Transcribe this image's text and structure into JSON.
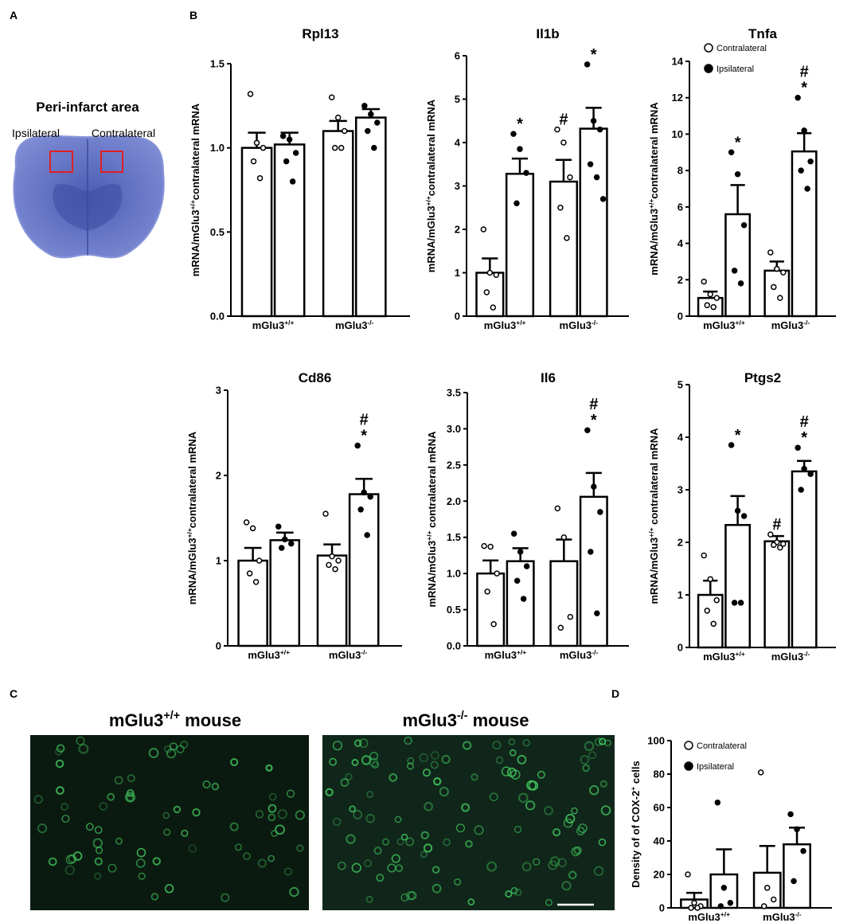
{
  "panel_labels": [
    "A",
    "B",
    "C",
    "D"
  ],
  "panel_a": {
    "title": "Peri-infarct area",
    "left": "Ipsilateral",
    "right": "Contralateral"
  },
  "panel_c": {
    "titles": [
      {
        "text": "mGlu3",
        "sup": "+/+",
        "rest": " mouse"
      },
      {
        "text": "mGlu3",
        "sup": "-/-",
        "rest": " mouse"
      }
    ]
  },
  "chart_data": [
    {
      "type": "bar",
      "title": "Rpl13",
      "y_label": {
        "text": "mRNA/mGlu3",
        "sup": "+/+",
        "rest": "contralateral mRNA"
      },
      "categories": [
        {
          "text": "mGlu3",
          "sup": "+/+"
        },
        {
          "text": "mGlu3",
          "sup": "-/-"
        }
      ],
      "ylim": [
        0,
        1.5
      ],
      "yticks": [
        {
          "value": 0,
          "label": "0.0"
        },
        0.5,
        {
          "value": 1,
          "label": "1.0"
        },
        1.5
      ],
      "series": [
        {
          "color": "#ffffff",
          "values": [
            1.0,
            1.1
          ],
          "errors": [
            0.09,
            0.06
          ],
          "points": [
            [
              1.32,
              1.03,
              1.0,
              0.92,
              0.82
            ],
            [
              1.3,
              1.18,
              1.1,
              1.0,
              1.0
            ]
          ],
          "annotations": [
            [],
            []
          ]
        },
        {
          "color": "#000000",
          "values": [
            1.02,
            1.18
          ],
          "errors": [
            0.07,
            0.05
          ],
          "points": [
            [
              1.07,
              1.05,
              0.97,
              0.92,
              0.8
            ],
            [
              1.25,
              1.2,
              1.15,
              1.1,
              1.0
            ]
          ],
          "annotations": [
            [],
            []
          ]
        }
      ]
    },
    {
      "type": "bar",
      "title": "Il1b",
      "y_label": {
        "text": "mRNA/mGlu3",
        "sup": "+/+",
        "rest": "contralateral mRNA"
      },
      "categories": [
        {
          "text": "mGlu3",
          "sup": "+/+"
        },
        {
          "text": "mGlu3",
          "sup": "-/-"
        }
      ],
      "ylim": [
        0,
        6
      ],
      "yticks": [
        0,
        1,
        2,
        3,
        4,
        5,
        6
      ],
      "series": [
        {
          "color": "#ffffff",
          "values": [
            1.0,
            3.1
          ],
          "errors": [
            0.33,
            0.5
          ],
          "points": [
            [
              2.0,
              1.0,
              0.95,
              0.55,
              0.2
            ],
            [
              4.3,
              4.0,
              3.2,
              2.5,
              1.8
            ]
          ],
          "annotations": [
            [],
            [
              "#"
            ]
          ]
        },
        {
          "color": "#000000",
          "values": [
            3.28,
            4.32
          ],
          "errors": [
            0.35,
            0.48
          ],
          "points": [
            [
              4.2,
              3.85,
              3.3,
              2.6
            ],
            [
              5.8,
              4.5,
              4.3,
              3.5,
              3.2,
              2.7
            ]
          ],
          "annotations": [
            [
              "*"
            ],
            [
              "*"
            ]
          ]
        }
      ]
    },
    {
      "type": "bar",
      "title": "Tnfa",
      "legend": true,
      "y_label": {
        "text": "mRNA/mGlu3",
        "sup": "+/+",
        "rest": "contralateral mRNA"
      },
      "categories": [
        {
          "text": "mGlu3",
          "sup": "+/+"
        },
        {
          "text": "mGlu3",
          "sup": "-/-"
        }
      ],
      "ylim": [
        0,
        14
      ],
      "yticks": [
        0,
        2,
        4,
        6,
        8,
        10,
        12,
        14
      ],
      "series": [
        {
          "name": "Contralateral",
          "color": "#ffffff",
          "values": [
            1.0,
            2.5
          ],
          "errors": [
            0.35,
            0.5
          ],
          "points": [
            [
              1.9,
              1.2,
              1.0,
              0.6,
              0.5
            ],
            [
              3.5,
              2.6,
              2.4,
              1.6,
              1.0
            ]
          ],
          "annotations": [
            [],
            []
          ]
        },
        {
          "name": "Ipsilateral",
          "color": "#000000",
          "values": [
            5.6,
            9.05
          ],
          "errors": [
            1.6,
            1.0
          ],
          "points": [
            [
              9.0,
              7.8,
              5.0,
              2.5,
              1.8
            ],
            [
              12.0,
              10.2,
              8.5,
              8.0,
              7.0
            ]
          ],
          "annotations": [
            [
              "*"
            ],
            [
              "*",
              "#"
            ]
          ]
        }
      ]
    },
    {
      "type": "bar",
      "title": "Cd86",
      "y_label": {
        "text": "mRNA/mGlu3",
        "sup": "+/+",
        "rest": "contralateral mRNA"
      },
      "categories": [
        {
          "text": "mGlu3",
          "sup": "+/+"
        },
        {
          "text": "mGlu3",
          "sup": "-/-"
        }
      ],
      "ylim": [
        0,
        3
      ],
      "yticks": [
        0,
        1,
        2,
        3
      ],
      "series": [
        {
          "color": "#ffffff",
          "values": [
            1.0,
            1.06
          ],
          "errors": [
            0.15,
            0.13
          ],
          "points": [
            [
              1.45,
              1.38,
              1.0,
              0.85,
              0.75
            ],
            [
              1.55,
              1.05,
              1.0,
              0.95,
              0.9
            ]
          ],
          "annotations": [
            [],
            []
          ]
        },
        {
          "color": "#000000",
          "values": [
            1.24,
            1.78
          ],
          "errors": [
            0.09,
            0.18
          ],
          "points": [
            [
              1.4,
              1.25,
              1.2,
              1.15
            ],
            [
              2.35,
              1.8,
              1.75,
              1.6,
              1.3
            ]
          ],
          "annotations": [
            [],
            [
              "*",
              "#"
            ]
          ]
        }
      ]
    },
    {
      "type": "bar",
      "title": "Il6",
      "y_label": {
        "text": "mRNA/mGlu3",
        "sup": "+/+",
        "rest": " contralateral mRNA"
      },
      "categories": [
        {
          "text": "mGlu3",
          "sup": "+/+"
        },
        {
          "text": "mGlu3",
          "sup": "-/-"
        }
      ],
      "ylim": [
        0,
        3.5
      ],
      "yticks": [
        {
          "value": 0,
          "label": "0.0"
        },
        0.5,
        {
          "value": 1,
          "label": "1.0"
        },
        1.5,
        {
          "value": 2,
          "label": "2.0"
        },
        2.5,
        {
          "value": 3,
          "label": "3.0"
        },
        3.5
      ],
      "series": [
        {
          "color": "#ffffff",
          "values": [
            1.0,
            1.17
          ],
          "errors": [
            0.18,
            0.3
          ],
          "points": [
            [
              1.38,
              1.37,
              1.0,
              0.75,
              0.3
            ],
            [
              1.9,
              1.5,
              0.4,
              0.25
            ]
          ],
          "annotations": [
            [],
            []
          ]
        },
        {
          "color": "#000000",
          "values": [
            1.17,
            2.06
          ],
          "errors": [
            0.18,
            0.33
          ],
          "points": [
            [
              1.55,
              1.3,
              1.1,
              0.9,
              0.65
            ],
            [
              2.98,
              2.2,
              1.85,
              1.3,
              0.45
            ]
          ],
          "annotations": [
            [],
            [
              "*",
              "#"
            ]
          ]
        }
      ]
    },
    {
      "type": "bar",
      "title": "Ptgs2",
      "y_label": {
        "text": "mRNA/mGlu3",
        "sup": "+/+",
        "rest": " contralateral mRNA"
      },
      "categories": [
        {
          "text": "mGlu3",
          "sup": "+/+"
        },
        {
          "text": "mGlu3",
          "sup": "-/-"
        }
      ],
      "ylim": [
        0,
        5
      ],
      "yticks": [
        0,
        1,
        2,
        3,
        4,
        5
      ],
      "series": [
        {
          "color": "#ffffff",
          "values": [
            1.0,
            2.02
          ],
          "errors": [
            0.27,
            0.1
          ],
          "points": [
            [
              1.75,
              1.3,
              0.9,
              0.7,
              0.45
            ],
            [
              2.15,
              2.0,
              1.97,
              1.95,
              1.9
            ]
          ],
          "annotations": [
            [],
            [
              "#"
            ]
          ]
        },
        {
          "color": "#000000",
          "values": [
            2.33,
            3.35
          ],
          "errors": [
            0.55,
            0.2
          ],
          "points": [
            [
              3.85,
              2.6,
              2.5,
              0.85,
              0.85
            ],
            [
              3.8,
              3.4,
              3.3,
              3.0
            ]
          ],
          "annotations": [
            [
              "*"
            ],
            [
              "*",
              "#"
            ]
          ]
        }
      ]
    },
    {
      "type": "bar",
      "legend": true,
      "y_label": {
        "text": "Density of of COX-2",
        "sup": "+",
        "rest": " cells"
      },
      "categories": [
        {
          "text": "mGlu3",
          "sup": "+/+"
        },
        {
          "text": "mGlu3",
          "sup": "-/-"
        }
      ],
      "ylim": [
        0,
        100
      ],
      "yticks": [
        0,
        20,
        40,
        60,
        80,
        100
      ],
      "series": [
        {
          "name": "Contralateral",
          "color": "#ffffff",
          "values": [
            5,
            21
          ],
          "errors": [
            4,
            16
          ],
          "points": [
            [
              20,
              3,
              1,
              0,
              0
            ],
            [
              81,
              12,
              5,
              1
            ]
          ],
          "annotations": [
            [],
            []
          ]
        },
        {
          "name": "Ipsilateral",
          "color": "#000000",
          "values": [
            20,
            38
          ],
          "errors": [
            15,
            10
          ],
          "points": [
            [
              63,
              12,
              3,
              1
            ],
            [
              56,
              47,
              34,
              16
            ]
          ],
          "annotations": [
            [],
            []
          ]
        }
      ]
    }
  ]
}
